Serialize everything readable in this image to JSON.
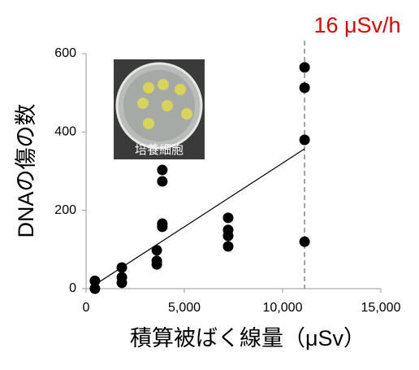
{
  "chart_data": {
    "type": "scatter",
    "x_label": "積算被ばく線量（μSv）",
    "y_label": "DNAの傷の数",
    "x": [
      450,
      450,
      1820,
      1820,
      1820,
      3600,
      3600,
      3600,
      3880,
      3880,
      3880,
      3880,
      7230,
      7230,
      7230,
      7230,
      11120,
      11120,
      11120,
      11120
    ],
    "y": [
      20,
      0,
      54,
      29,
      15,
      98,
      71,
      62,
      303,
      274,
      166,
      158,
      181,
      150,
      135,
      108,
      565,
      513,
      380,
      120
    ],
    "color": "#000000",
    "trend_line": {
      "x": [
        450,
        11120
      ],
      "y": [
        10,
        357
      ]
    },
    "reference_line": {
      "x": 11120,
      "label": "16 μSv/h",
      "color": "#e00000"
    },
    "inset_label": "培養細胞",
    "xlim": [
      0,
      15000
    ],
    "xticks": [
      0,
      {
        "value": 5000,
        "label": "5,000"
      },
      {
        "value": 10000,
        "label": "10,000"
      },
      {
        "value": 15000,
        "label": "15,000"
      }
    ],
    "ylim": [
      0,
      600
    ],
    "yticks": [
      0,
      200,
      400,
      600
    ]
  }
}
